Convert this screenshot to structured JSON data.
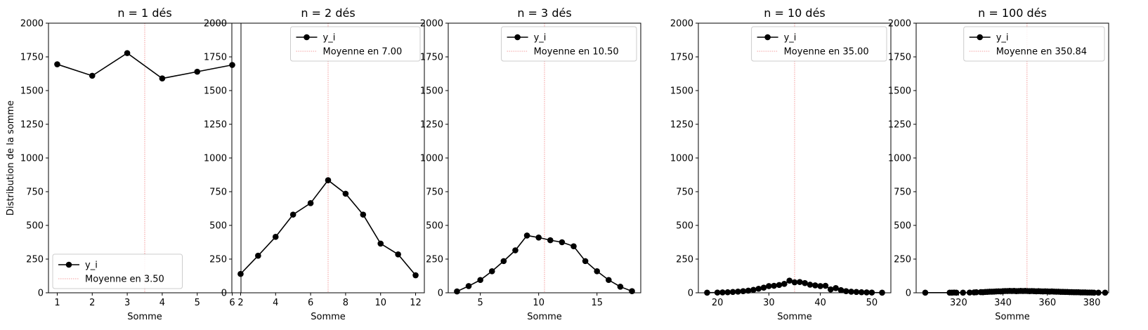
{
  "figure": {
    "ylabel": "Distribution de la somme",
    "series_label": "y_i"
  },
  "chart_data": [
    {
      "type": "line",
      "title": "n = 1 dés",
      "xlabel": "Somme",
      "ylabel": "Distribution de la somme",
      "xlim": [
        0.75,
        6.25
      ],
      "ylim": [
        0,
        2000
      ],
      "xticks": [
        1,
        2,
        3,
        4,
        5,
        6
      ],
      "yticks": [
        0,
        250,
        500,
        750,
        1000,
        1250,
        1500,
        1750,
        2000
      ],
      "x": [
        1,
        2,
        3,
        4,
        5,
        6
      ],
      "y": [
        1695,
        1610,
        1778,
        1590,
        1640,
        1690
      ],
      "mean": 3.5,
      "legend": {
        "series": "y_i",
        "mean": "Moyenne en 3.50",
        "placement": "lower-left"
      }
    },
    {
      "type": "line",
      "title": "n = 2 dés",
      "xlabel": "Somme",
      "ylabel": "",
      "xlim": [
        1.5,
        12.5
      ],
      "ylim": [
        0,
        2000
      ],
      "xticks": [
        2,
        4,
        6,
        8,
        10,
        12
      ],
      "yticks": [
        0,
        250,
        500,
        750,
        1000,
        1250,
        1500,
        1750,
        2000
      ],
      "x": [
        2,
        3,
        4,
        5,
        6,
        7,
        8,
        9,
        10,
        11,
        12
      ],
      "y": [
        140,
        275,
        415,
        580,
        665,
        835,
        735,
        580,
        365,
        285,
        130
      ],
      "mean": 7.0,
      "legend": {
        "series": "y_i",
        "mean": "Moyenne en 7.00",
        "placement": "upper-right"
      }
    },
    {
      "type": "line",
      "title": "n = 3 dés",
      "xlabel": "Somme",
      "ylabel": "",
      "xlim": [
        2.25,
        18.75
      ],
      "ylim": [
        0,
        2000
      ],
      "xticks": [
        5,
        10,
        15
      ],
      "yticks": [
        0,
        250,
        500,
        750,
        1000,
        1250,
        1500,
        1750,
        2000
      ],
      "x": [
        3,
        4,
        5,
        6,
        7,
        8,
        9,
        10,
        11,
        12,
        13,
        14,
        15,
        16,
        17,
        18
      ],
      "y": [
        10,
        50,
        95,
        160,
        235,
        315,
        425,
        410,
        390,
        375,
        345,
        235,
        160,
        95,
        45,
        12
      ],
      "mean": 10.5,
      "legend": {
        "series": "y_i",
        "mean": "Moyenne en 10.50",
        "placement": "upper-right"
      }
    },
    {
      "type": "line",
      "title": "n = 10 dés",
      "xlabel": "Somme",
      "ylabel": "",
      "xlim": [
        16.3,
        53.7
      ],
      "ylim": [
        0,
        2000
      ],
      "xticks": [
        20,
        30,
        40,
        50
      ],
      "yticks": [
        0,
        250,
        500,
        750,
        1000,
        1250,
        1500,
        1750,
        2000
      ],
      "x": [
        18,
        20,
        21,
        22,
        23,
        24,
        25,
        26,
        27,
        28,
        29,
        30,
        31,
        32,
        33,
        34,
        35,
        36,
        37,
        38,
        39,
        40,
        41,
        42,
        43,
        44,
        45,
        46,
        47,
        48,
        49,
        50,
        52
      ],
      "y": [
        1,
        2,
        3,
        4,
        6,
        9,
        12,
        16,
        22,
        30,
        38,
        50,
        52,
        58,
        66,
        90,
        78,
        80,
        72,
        60,
        55,
        50,
        52,
        25,
        35,
        20,
        12,
        8,
        6,
        4,
        3,
        2,
        1
      ],
      "mean": 35.0,
      "legend": {
        "series": "y_i",
        "mean": "Moyenne en 35.00",
        "placement": "upper-right"
      }
    },
    {
      "type": "line",
      "title": "n = 100 dés",
      "xlabel": "Somme",
      "ylabel": "",
      "xlim": [
        300.9,
        387.6
      ],
      "ylim": [
        0,
        2000
      ],
      "xticks": [
        320,
        340,
        360,
        380
      ],
      "yticks": [
        0,
        250,
        500,
        750,
        1000,
        1250,
        1500,
        1750,
        2000
      ],
      "x": [
        305,
        316,
        317,
        318,
        319,
        322,
        325,
        327,
        328,
        330,
        331,
        332,
        333,
        334,
        335,
        336,
        337,
        338,
        339,
        340,
        341,
        342,
        343,
        344,
        345,
        346,
        347,
        348,
        349,
        350,
        351,
        352,
        353,
        354,
        355,
        356,
        357,
        358,
        359,
        360,
        361,
        362,
        363,
        364,
        365,
        366,
        367,
        368,
        369,
        370,
        371,
        372,
        373,
        374,
        375,
        376,
        377,
        378,
        379,
        380,
        381,
        383,
        386
      ],
      "y": [
        1,
        1,
        1,
        2,
        1,
        1,
        2,
        3,
        4,
        5,
        4,
        6,
        7,
        8,
        8,
        9,
        10,
        11,
        10,
        12,
        13,
        13,
        14,
        13,
        14,
        12,
        13,
        14,
        13,
        14,
        13,
        12,
        13,
        12,
        11,
        12,
        11,
        10,
        11,
        10,
        9,
        10,
        9,
        8,
        8,
        7,
        7,
        6,
        6,
        5,
        5,
        4,
        4,
        4,
        3,
        3,
        3,
        2,
        2,
        2,
        1,
        1,
        1
      ],
      "mean": 350.84,
      "legend": {
        "series": "y_i",
        "mean": "Moyenne en 350.84",
        "placement": "upper-right"
      }
    }
  ]
}
